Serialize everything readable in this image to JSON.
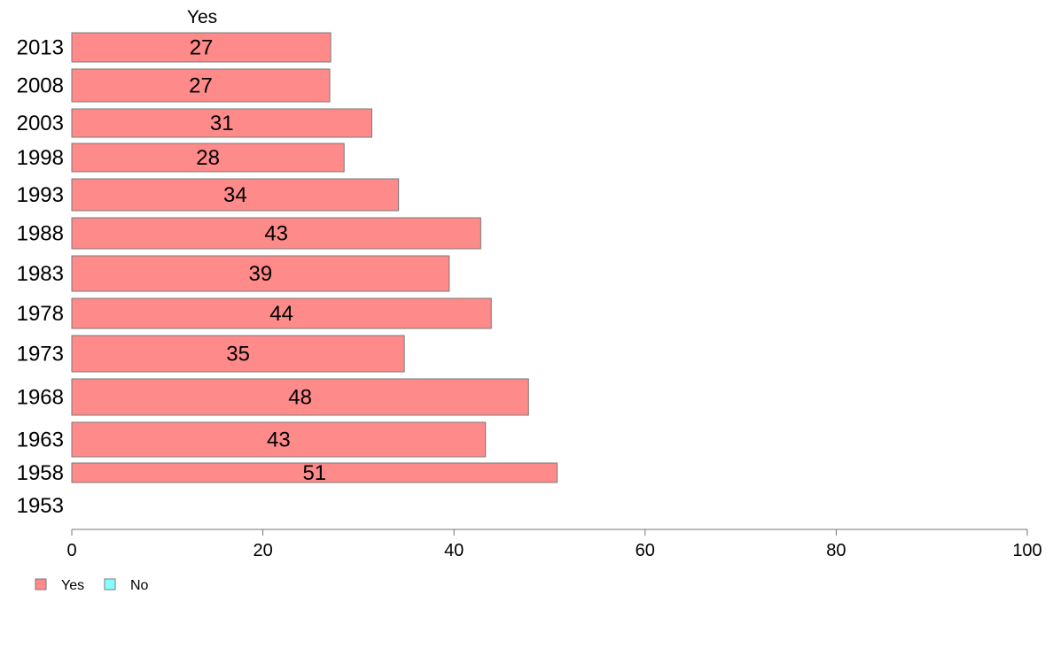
{
  "chart_data": {
    "type": "bar",
    "orientation": "horizontal",
    "stacked": true,
    "column_header": "Yes",
    "categories": [
      "2013",
      "2008",
      "2003",
      "1998",
      "1993",
      "1988",
      "1983",
      "1978",
      "1973",
      "1968",
      "1963",
      "1958",
      "1953"
    ],
    "series": [
      {
        "name": "Yes",
        "color": "#ff8a8a",
        "values": [
          27.1,
          27.0,
          31.4,
          28.5,
          34.2,
          42.8,
          39.5,
          43.9,
          34.8,
          47.8,
          43.3,
          50.8,
          null
        ],
        "labels": [
          "27",
          "27",
          "31",
          "28",
          "34",
          "43",
          "39",
          "44",
          "35",
          "48",
          "43",
          "51",
          ""
        ]
      },
      {
        "name": "No",
        "color": "#88ffff",
        "values": [
          null,
          null,
          null,
          null,
          null,
          null,
          null,
          null,
          null,
          null,
          null,
          null,
          null
        ]
      }
    ],
    "xlim": [
      0,
      100
    ],
    "xticks": [
      "0",
      "20",
      "40",
      "60",
      "80",
      "100"
    ],
    "grid": false,
    "legend": {
      "position": "bottom-left",
      "entries": [
        "Yes",
        "No"
      ]
    }
  }
}
